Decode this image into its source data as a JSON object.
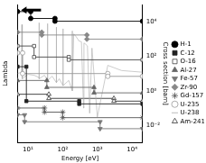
{
  "chart_data": {
    "type": "line",
    "x_label": "Energy [eV]",
    "y_label": "Lambda",
    "y2_label": "Cross section [barn]",
    "log": "x",
    "grid": false,
    "legend": "right",
    "xlim": [
      5,
      20000
    ],
    "xticks": [
      {
        "value": 10,
        "label": "10¹"
      },
      {
        "value": 100,
        "label": "10²"
      },
      {
        "value": 1000,
        "label": "10³"
      },
      {
        "value": 10000,
        "label": "10⁴"
      }
    ],
    "ylim": [
      0,
      1
    ],
    "yticks": [],
    "y2lim": [
      0.001,
      100000
    ],
    "y2ticks": [
      {
        "value": 0.01,
        "label": "10⁻²"
      },
      {
        "value": 1,
        "label": "10⁰"
      },
      {
        "value": 100,
        "label": "10²"
      },
      {
        "value": 10000,
        "label": "10⁴"
      }
    ],
    "series": [
      {
        "name": "H-1",
        "color": "#000000",
        "marker": "circle",
        "line_style": "step",
        "x": [
          5,
          12,
          12,
          60,
          60,
          20000
        ],
        "values": [
          0.95,
          0.95,
          0.9,
          0.9,
          0.88,
          0.88
        ]
      },
      {
        "name": "C-12",
        "color": "#222222",
        "marker": "rect",
        "line_style": "step",
        "x": [
          5,
          9,
          9,
          300,
          300,
          20000
        ],
        "values": [
          0.55,
          0.55,
          0.3,
          0.3,
          0.28,
          0.28
        ]
      },
      {
        "name": "O-16",
        "color": "#444444",
        "marker": "rectOpen",
        "line_style": "step",
        "x": [
          5,
          15,
          15,
          150,
          150,
          20000
        ],
        "values": [
          0.7,
          0.7,
          0.62,
          0.62,
          0.6,
          0.6
        ]
      },
      {
        "name": "Al-27",
        "color": "#666666",
        "marker": "triangle",
        "line_style": "step",
        "x": [
          5,
          35,
          35,
          800,
          800,
          20000
        ],
        "values": [
          0.45,
          0.45,
          0.4,
          0.4,
          0.36,
          0.36
        ]
      },
      {
        "name": "Fe-57",
        "color": "#777777",
        "marker": "triangleDown",
        "line_style": "step",
        "x": [
          5,
          8,
          8,
          1200,
          1200,
          20000
        ],
        "values": [
          0.2,
          0.2,
          0.15,
          0.15,
          0.1,
          0.1
        ]
      },
      {
        "name": "Zr-90",
        "color": "#888888",
        "marker": "rectRot",
        "line_style": "step",
        "x": [
          5,
          25,
          25,
          500,
          500,
          20000
        ],
        "values": [
          0.8,
          0.8,
          0.78,
          0.78,
          0.75,
          0.75
        ]
      },
      {
        "name": "Gd-157",
        "color": "#555555",
        "marker": "star",
        "line_style": "step",
        "x": [
          5,
          30,
          30,
          100,
          100,
          20000
        ],
        "values": [
          0.25,
          0.25,
          0.22,
          0.22,
          0.18,
          0.18
        ]
      },
      {
        "name": "U-235",
        "color": "#999999",
        "marker": "circleOpen",
        "line_style": "step",
        "x": [
          5,
          7,
          7,
          2000,
          2000,
          20000
        ],
        "values": [
          0.65,
          0.65,
          0.5,
          0.5,
          0.48,
          0.48
        ]
      },
      {
        "name": "U-238",
        "color": "#aaaaaa",
        "marker": "none",
        "line_style": "solid",
        "axis": "y2",
        "x": [
          5,
          6.5,
          6.67,
          6.85,
          10,
          15,
          20.6,
          20.87,
          21.1,
          30,
          36.4,
          36.68,
          37,
          50,
          65.8,
          66.03,
          66.3,
          80,
          102.2,
          102.56,
          103,
          150,
          189.5,
          189.67,
          190,
          208.3,
          237.4,
          273.7,
          291,
          348,
          400,
          411,
          463,
          518,
          600,
          700,
          1000,
          2000,
          5000,
          20000
        ],
        "values": [
          10,
          12,
          7000,
          5,
          9,
          8,
          6,
          9000,
          5,
          8,
          4,
          8000,
          4,
          7,
          3,
          5000,
          3,
          5,
          2,
          4000,
          2,
          4,
          1,
          3000,
          1,
          2000,
          1500,
          1000,
          800,
          700,
          0.1,
          600,
          500,
          400,
          0.05,
          300,
          0.03,
          30,
          15,
          12
        ]
      },
      {
        "name": "Am-241",
        "color": "#333333",
        "marker": "triangleOpen",
        "line_style": "step",
        "x": [
          5,
          40,
          40,
          3000,
          3000,
          20000
        ],
        "values": [
          0.35,
          0.35,
          0.32,
          0.32,
          0.3,
          0.3
        ]
      }
    ]
  }
}
